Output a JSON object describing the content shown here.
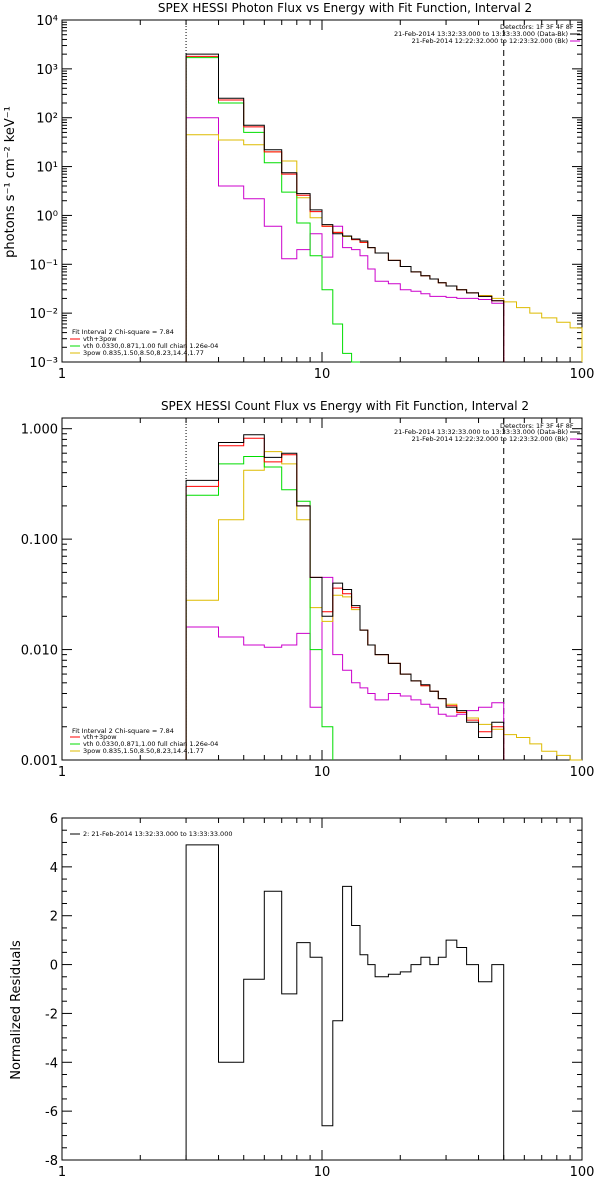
{
  "chart_data": [
    {
      "type": "line",
      "title": "SPEX HESSI Photon Flux vs Energy with Fit Function, Interval 2",
      "xlabel": "",
      "ylabel": "photons s⁻¹ cm⁻² keV⁻¹",
      "xscale": "log",
      "yscale": "log",
      "xlim": [
        1,
        100
      ],
      "ylim": [
        0.001,
        10000
      ],
      "x_ticks": [
        1,
        10,
        100
      ],
      "x_tick_labels": [
        "1",
        "10",
        "100"
      ],
      "y_ticks": [
        0.001,
        0.01,
        0.1,
        1,
        10,
        100,
        1000,
        10000
      ],
      "y_tick_labels": [
        "10⁻³",
        "10⁻²",
        "10⁻¹",
        "10⁰",
        "10¹",
        "10²",
        "10³",
        "10⁴"
      ],
      "legend_right_header": "Detectors: 1F 3F 4F 8F",
      "legend_right": [
        {
          "label": "21-Feb-2014 13:32:33.000 to 13:33:33.000 (Data-Bk)",
          "color": "#000000"
        },
        {
          "label": "21-Feb-2014 12:22:32.000 to 12:23:32.000 (Bk)",
          "color": "#cc00cc"
        }
      ],
      "legend_left_header": "Fit Interval 2   Chi-square = 7.84",
      "legend_left": [
        {
          "label": "vth+3pow",
          "color": "#ff0000"
        },
        {
          "label": "vth 0.0330,0.871,1.00  full chian 1.26e-04",
          "color": "#00dd00"
        },
        {
          "label": "3pow 0.835,1.50,8.50,8.23,14.4,1.77",
          "color": "#ddbb00"
        }
      ],
      "vlines": [
        {
          "x": 3.0,
          "style": "dotted",
          "color": "#000000"
        },
        {
          "x": 50.0,
          "style": "dashed",
          "color": "#000000"
        }
      ],
      "edges": [
        3.0,
        4.0,
        5.0,
        6.0,
        7.0,
        8.0,
        9.0,
        10.0,
        11.0,
        12.0,
        13.0,
        14.0,
        15.0,
        16.0,
        18.0,
        20.0,
        22.0,
        24.0,
        26.0,
        28.0,
        30.0,
        33.0,
        36.0,
        40.0,
        45.0,
        50.0,
        56.0,
        63.0,
        70.0,
        80.0,
        90.0,
        100.0
      ],
      "series": [
        {
          "color": "#000000",
          "values": [
            2000,
            250,
            70,
            22,
            7.5,
            2.8,
            1.3,
            0.65,
            0.42,
            0.38,
            0.33,
            0.3,
            0.22,
            0.17,
            0.12,
            0.09,
            0.07,
            0.058,
            0.05,
            0.042,
            0.036,
            0.03,
            0.026,
            0.022,
            0.018
          ]
        },
        {
          "color": "#ff0000",
          "values": [
            1800,
            230,
            65,
            20,
            7.0,
            2.6,
            1.2,
            0.6,
            0.45,
            0.38,
            0.32,
            0.28,
            0.22,
            0.17,
            0.12,
            0.09,
            0.07,
            0.058,
            0.05,
            0.042,
            0.036,
            0.03,
            0.026,
            0.022,
            0.018
          ]
        },
        {
          "color": "#00dd00",
          "values": [
            1700,
            200,
            50,
            12,
            3.0,
            0.7,
            0.15,
            0.03,
            0.006,
            0.0015,
            0.0005
          ]
        },
        {
          "color": "#ddbb00",
          "values": [
            45,
            35,
            28,
            20,
            13,
            2.3,
            0.9,
            0.6,
            0.45,
            0.37,
            0.32,
            0.28,
            0.22,
            0.17,
            0.12,
            0.09,
            0.07,
            0.058,
            0.05,
            0.042,
            0.036,
            0.03,
            0.026,
            0.023,
            0.02,
            0.017,
            0.013,
            0.01,
            0.008,
            0.0065,
            0.005
          ]
        },
        {
          "color": "#cc00cc",
          "values": [
            100,
            4.0,
            2.2,
            0.6,
            0.13,
            0.2,
            0.42,
            0.14,
            0.6,
            0.22,
            0.2,
            0.15,
            0.08,
            0.045,
            0.04,
            0.03,
            0.028,
            0.025,
            0.022,
            0.022,
            0.021,
            0.02,
            0.02,
            0.019,
            0.016
          ]
        }
      ]
    },
    {
      "type": "line",
      "title": "SPEX HESSI Count Flux vs Energy with Fit Function, Interval 2",
      "xlabel": "",
      "ylabel": "",
      "xscale": "log",
      "yscale": "log",
      "xlim": [
        1,
        100
      ],
      "ylim": [
        0.001,
        1.25
      ],
      "x_ticks": [
        1,
        10,
        100
      ],
      "x_tick_labels": [
        "1",
        "10",
        "100"
      ],
      "y_ticks": [
        0.001,
        0.01,
        0.1,
        1.0
      ],
      "y_tick_labels": [
        "0.001",
        "0.010",
        "0.100",
        "1.000"
      ],
      "legend_right_header": "Detectors: 1F 3F 4F 8F",
      "legend_right": [
        {
          "label": "21-Feb-2014 13:32:33.000 to 13:33:33.000 (Data-Bk)",
          "color": "#000000"
        },
        {
          "label": "21-Feb-2014 12:22:32.000 to 12:23:32.000 (Bk)",
          "color": "#cc00cc"
        }
      ],
      "legend_left_header": "Fit Interval 2   Chi-square = 7.84",
      "legend_left": [
        {
          "label": "vth+3pow",
          "color": "#ff0000"
        },
        {
          "label": "vth 0.0330,0.871,1.00  full chian 1.26e-04",
          "color": "#00dd00"
        },
        {
          "label": "3pow 0.835,1.50,8.50,8.23,14.4,1.77",
          "color": "#ddbb00"
        }
      ],
      "vlines": [
        {
          "x": 3.0,
          "style": "dotted",
          "color": "#000000"
        },
        {
          "x": 50.0,
          "style": "dashed",
          "color": "#000000"
        }
      ],
      "edges": [
        3.0,
        4.0,
        5.0,
        6.0,
        7.0,
        8.0,
        9.0,
        10.0,
        11.0,
        12.0,
        13.0,
        14.0,
        15.0,
        16.0,
        18.0,
        20.0,
        22.0,
        24.0,
        26.0,
        28.0,
        30.0,
        33.0,
        36.0,
        40.0,
        45.0,
        50.0,
        56.0,
        63.0,
        70.0,
        80.0,
        90.0,
        100.0
      ],
      "series": [
        {
          "color": "#000000",
          "values": [
            0.34,
            0.75,
            0.88,
            0.55,
            0.6,
            0.2,
            0.045,
            0.02,
            0.04,
            0.035,
            0.025,
            0.015,
            0.011,
            0.009,
            0.0075,
            0.006,
            0.0052,
            0.0048,
            0.0042,
            0.0036,
            0.003,
            0.0028,
            0.0022,
            0.0016,
            0.0022
          ]
        },
        {
          "color": "#ff0000",
          "values": [
            0.3,
            0.7,
            0.82,
            0.5,
            0.58,
            0.2,
            0.045,
            0.022,
            0.036,
            0.032,
            0.024,
            0.015,
            0.011,
            0.009,
            0.0075,
            0.006,
            0.0052,
            0.0047,
            0.0042,
            0.0036,
            0.0031,
            0.0027,
            0.0023,
            0.0018,
            0.002
          ]
        },
        {
          "color": "#00dd00",
          "values": [
            0.25,
            0.48,
            0.56,
            0.45,
            0.28,
            0.22,
            0.01,
            0.002
          ]
        },
        {
          "color": "#ddbb00",
          "values": [
            0.028,
            0.15,
            0.42,
            0.62,
            0.48,
            0.15,
            0.024,
            0.018,
            0.031,
            0.03,
            0.023,
            0.015,
            0.011,
            0.009,
            0.0075,
            0.006,
            0.0052,
            0.0047,
            0.0042,
            0.0036,
            0.0032,
            0.0027,
            0.0024,
            0.0021,
            0.0019,
            0.0017,
            0.0016,
            0.0014,
            0.0012,
            0.0011,
            0.001
          ]
        },
        {
          "color": "#cc00cc",
          "values": [
            0.016,
            0.013,
            0.011,
            0.0105,
            0.011,
            0.014,
            0.003,
            0.045,
            0.009,
            0.0065,
            0.005,
            0.0045,
            0.004,
            0.0035,
            0.004,
            0.0038,
            0.0035,
            0.0032,
            0.003,
            0.0026,
            0.0025,
            0.0026,
            0.0028,
            0.003,
            0.0033
          ]
        }
      ]
    },
    {
      "type": "line",
      "title": "",
      "xlabel": "",
      "ylabel": "Normalized Residuals",
      "xscale": "log",
      "yscale": "linear",
      "xlim": [
        1,
        100
      ],
      "ylim": [
        -8,
        6
      ],
      "x_ticks": [
        1,
        10,
        100
      ],
      "x_tick_labels": [
        "1",
        "10",
        "100"
      ],
      "y_ticks": [
        -8,
        -6,
        -4,
        -2,
        0,
        2,
        4,
        6
      ],
      "y_tick_labels": [
        "-8",
        "-6",
        "-4",
        "-2",
        "0",
        "2",
        "4",
        "6"
      ],
      "legend_left_header": "",
      "legend_left": [
        {
          "label": "2: 21-Feb-2014 13:32:33.000 to 13:33:33.000",
          "color": "#000000"
        }
      ],
      "edges": [
        3.0,
        4.0,
        5.0,
        6.0,
        7.0,
        8.0,
        9.0,
        10.0,
        11.0,
        12.0,
        13.0,
        14.0,
        15.0,
        16.0,
        18.0,
        20.0,
        22.0,
        24.0,
        26.0,
        28.0,
        30.0,
        33.0,
        36.0,
        40.0,
        45.0,
        50.0
      ],
      "series": [
        {
          "color": "#000000",
          "values": [
            4.9,
            -4.0,
            -0.6,
            3.0,
            -1.2,
            0.9,
            0.3,
            -6.6,
            -2.3,
            3.2,
            1.6,
            0.4,
            0.0,
            -0.5,
            -0.4,
            -0.3,
            0.0,
            0.3,
            0.0,
            0.3,
            1.0,
            0.7,
            0.0,
            -0.7,
            0.0
          ]
        }
      ]
    }
  ]
}
